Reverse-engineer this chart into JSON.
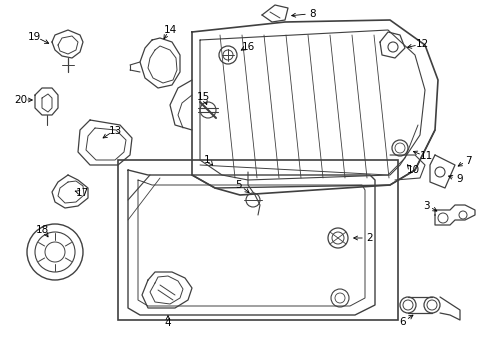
{
  "background_color": "#ffffff",
  "line_color": "#404040",
  "figsize": [
    4.9,
    3.6
  ],
  "dpi": 100,
  "xlim": [
    0,
    490
  ],
  "ylim": [
    0,
    360
  ]
}
